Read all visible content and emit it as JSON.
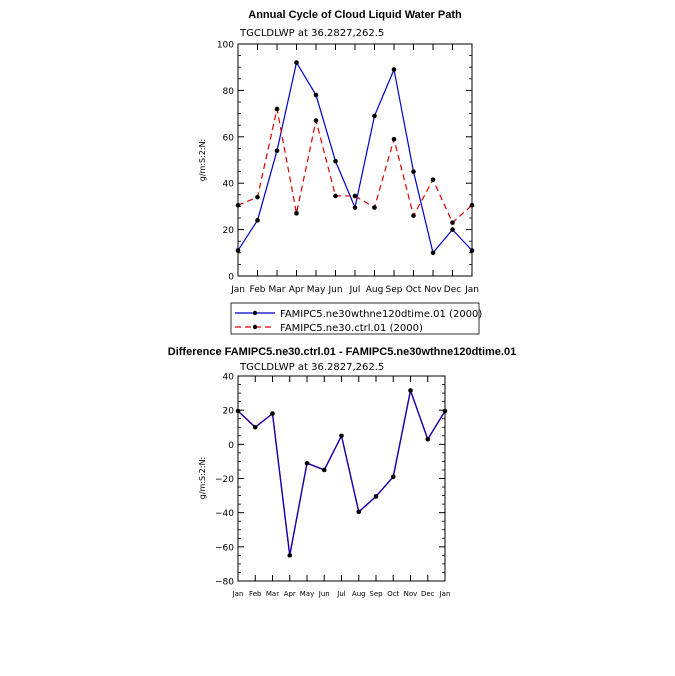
{
  "chart_data": [
    {
      "type": "line",
      "title": "Annual Cycle of Cloud Liquid Water Path",
      "subtitle": "TGCLDLWP at 36.2827,262.5",
      "ylabel": "g/m:S:2:N:",
      "xlabel": "",
      "categories": [
        "Jan",
        "Feb",
        "Mar",
        "Apr",
        "May",
        "Jun",
        "Jul",
        "Aug",
        "Sep",
        "Oct",
        "Nov",
        "Dec",
        "Jan"
      ],
      "ylim": [
        0,
        100
      ],
      "yticks": [
        0,
        20,
        40,
        60,
        80,
        100
      ],
      "series": [
        {
          "name": "FAMIPC5.ne30wthne120dtime.01 (2000)",
          "color": "#0000cc",
          "dash": "solid",
          "values": [
            11,
            24,
            54,
            92,
            78,
            49.5,
            29.5,
            69,
            89,
            45,
            10,
            20,
            11
          ]
        },
        {
          "name": "FAMIPC5.ne30.ctrl.01 (2000)",
          "color": "#dd0000",
          "dash": "dashed",
          "values": [
            30.5,
            34,
            72,
            27,
            67,
            34.5,
            34.5,
            29.5,
            59,
            26,
            41.5,
            23,
            30.5
          ]
        }
      ]
    },
    {
      "type": "line",
      "title": "Difference FAMIPC5.ne30.ctrl.01 - FAMIPC5.ne30wthne120dtime.01",
      "subtitle": "TGCLDLWP at 36.2827,262.5",
      "ylabel": "g/m:S:2:N:",
      "xlabel": "",
      "categories": [
        "Jan",
        "Feb",
        "Mar",
        "Apr",
        "May",
        "Jun",
        "Jul",
        "Aug",
        "Sep",
        "Oct",
        "Nov",
        "Dec",
        "Jan"
      ],
      "ylim": [
        -80,
        40
      ],
      "yticks": [
        -80,
        -60,
        -40,
        -20,
        0,
        20,
        40
      ],
      "series": [
        {
          "name": "Difference",
          "color": "#0000cc",
          "overlay_color": "#dd0000",
          "dash": "solid",
          "values": [
            19.5,
            10,
            18,
            -65,
            -11,
            -15,
            5,
            -39.5,
            -30.5,
            -19,
            31.5,
            3,
            19.5
          ]
        }
      ]
    }
  ]
}
